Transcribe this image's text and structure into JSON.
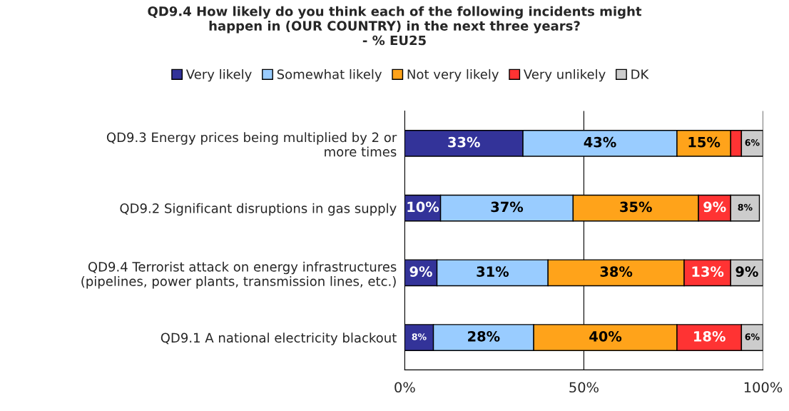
{
  "chart_data": {
    "type": "bar",
    "orientation": "horizontal",
    "stacked": true,
    "title": "QD9.4 How likely do you think each of the following incidents might\nhappen in (OUR COUNTRY) in the next three years?\n- % EU25",
    "categories": [
      "QD9.3 Energy prices being multiplied by 2 or\nmore times",
      "QD9.2 Significant disruptions in gas supply",
      "QD9.4 Terrorist attack on energy infrastructures\n(pipelines, power plants, transmission lines, etc.)",
      "QD9.1 A national electricity blackout"
    ],
    "series": [
      {
        "name": "Very likely",
        "color": "#333399",
        "values": [
          33,
          10,
          9,
          8
        ],
        "value_labels": [
          "33%",
          "10%",
          "9%",
          "8%"
        ]
      },
      {
        "name": "Somewhat likely",
        "color": "#99ccff",
        "values": [
          43,
          37,
          31,
          28
        ],
        "value_labels": [
          "43%",
          "37%",
          "31%",
          "28%"
        ]
      },
      {
        "name": "Not very likely",
        "color": "#ffa31a",
        "values": [
          15,
          35,
          38,
          40
        ],
        "value_labels": [
          "15%",
          "35%",
          "38%",
          "40%"
        ]
      },
      {
        "name": "Very unlikely",
        "color": "#ff3333",
        "values": [
          3,
          9,
          13,
          18
        ],
        "value_labels": [
          null,
          "9%",
          "13%",
          "18%"
        ]
      },
      {
        "name": "DK",
        "color": "#cccccc",
        "values": [
          6,
          8,
          9,
          6
        ],
        "value_labels": [
          "6%",
          "8%",
          "9%",
          "6%"
        ]
      }
    ],
    "xlim": [
      0,
      100
    ],
    "xticks": [
      {
        "value": 0,
        "label": "0%"
      },
      {
        "value": 50,
        "label": "50%"
      },
      {
        "value": 100,
        "label": "100%"
      }
    ],
    "grid": "x",
    "legend": "top"
  }
}
